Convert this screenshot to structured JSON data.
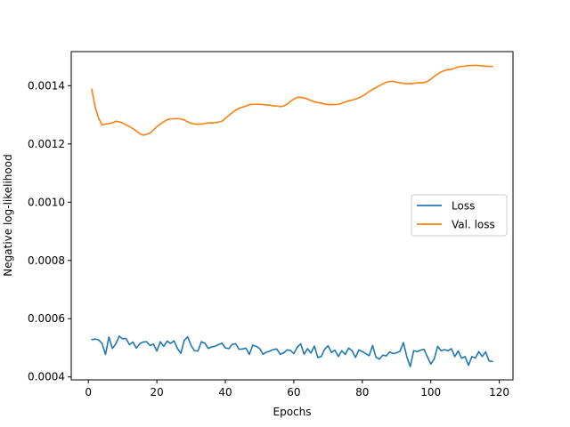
{
  "chart_data": {
    "type": "line",
    "xlabel": "Epochs",
    "ylabel": "Negative log-likelihood",
    "xlim": [
      -5,
      124
    ],
    "ylim": [
      0.00039,
      0.001517
    ],
    "xticks": [
      0,
      20,
      40,
      60,
      80,
      100,
      120
    ],
    "xtick_labels": [
      "0",
      "20",
      "40",
      "60",
      "80",
      "100",
      "120"
    ],
    "yticks": [
      0.0004,
      0.0006,
      0.0008,
      0.001,
      0.0012,
      0.0014
    ],
    "ytick_labels": [
      "0.0004",
      "0.0006",
      "0.0008",
      "0.0010",
      "0.0012",
      "0.0014"
    ],
    "grid": false,
    "legend_position": "center-right",
    "series": [
      {
        "name": "Loss",
        "color": "#1f77b4",
        "x": [
          1,
          2,
          3,
          4,
          5,
          6,
          7,
          8,
          9,
          10,
          11,
          12,
          13,
          14,
          15,
          16,
          17,
          18,
          19,
          20,
          21,
          22,
          23,
          24,
          25,
          26,
          27,
          28,
          29,
          30,
          31,
          32,
          33,
          34,
          35,
          36,
          37,
          38,
          39,
          40,
          41,
          42,
          43,
          44,
          45,
          46,
          47,
          48,
          49,
          50,
          51,
          52,
          53,
          54,
          55,
          56,
          57,
          58,
          59,
          60,
          61,
          62,
          63,
          64,
          65,
          66,
          67,
          68,
          69,
          70,
          71,
          72,
          73,
          74,
          75,
          76,
          77,
          78,
          79,
          80,
          81,
          82,
          83,
          84,
          85,
          86,
          87,
          88,
          89,
          90,
          91,
          92,
          93,
          94,
          95,
          96,
          97,
          98,
          99,
          100,
          101,
          102,
          103,
          104,
          105,
          106,
          107,
          108,
          109,
          110,
          111,
          112,
          113,
          114,
          115,
          116,
          117,
          118
        ],
        "values": [
          0.000528,
          0.00053,
          0.000527,
          0.000515,
          0.000477,
          0.000537,
          0.000498,
          0.000513,
          0.00054,
          0.000531,
          0.000532,
          0.000511,
          0.00052,
          0.000499,
          0.000514,
          0.00052,
          0.000521,
          0.000508,
          0.000513,
          0.000489,
          0.000521,
          0.000505,
          0.000523,
          0.000515,
          0.000524,
          0.000498,
          0.000481,
          0.000525,
          0.000538,
          0.000508,
          0.00049,
          0.000489,
          0.000521,
          0.000516,
          0.000498,
          0.000503,
          0.000505,
          0.000511,
          0.000516,
          0.0005,
          0.000497,
          0.000512,
          0.000514,
          0.000495,
          0.000496,
          0.000499,
          0.000477,
          0.000509,
          0.000505,
          0.000498,
          0.000478,
          0.000485,
          0.000489,
          0.000494,
          0.000496,
          0.000478,
          0.000482,
          0.000493,
          0.000491,
          0.00048,
          0.000502,
          0.000514,
          0.000478,
          0.000497,
          0.000482,
          0.000506,
          0.000467,
          0.00047,
          0.000495,
          0.000507,
          0.000484,
          0.000492,
          0.00047,
          0.00049,
          0.000477,
          0.000499,
          0.00049,
          0.000467,
          0.000493,
          0.000487,
          0.00048,
          0.000473,
          0.000508,
          0.000467,
          0.000461,
          0.000475,
          0.000472,
          0.000486,
          0.00048,
          0.000483,
          0.000488,
          0.000518,
          0.000469,
          0.000435,
          0.00049,
          0.000487,
          0.000492,
          0.000495,
          0.000469,
          0.000444,
          0.000462,
          0.000505,
          0.00049,
          0.000494,
          0.00049,
          0.000497,
          0.00047,
          0.000489,
          0.000464,
          0.00047,
          0.00044,
          0.00047,
          0.000465,
          0.000487,
          0.00047,
          0.000486,
          0.000455,
          0.000453
        ]
      },
      {
        "name": "Val. loss",
        "color": "#ff7f0e",
        "x": [
          1,
          2,
          3,
          4,
          5,
          6,
          7,
          8,
          9,
          10,
          11,
          12,
          13,
          14,
          15,
          16,
          17,
          18,
          19,
          20,
          21,
          22,
          23,
          24,
          25,
          26,
          27,
          28,
          29,
          30,
          31,
          32,
          33,
          34,
          35,
          36,
          37,
          38,
          39,
          40,
          41,
          42,
          43,
          44,
          45,
          46,
          47,
          48,
          49,
          50,
          51,
          52,
          53,
          54,
          55,
          56,
          57,
          58,
          59,
          60,
          61,
          62,
          63,
          64,
          65,
          66,
          67,
          68,
          69,
          70,
          71,
          72,
          73,
          74,
          75,
          76,
          77,
          78,
          79,
          80,
          81,
          82,
          83,
          84,
          85,
          86,
          87,
          88,
          89,
          90,
          91,
          92,
          93,
          94,
          95,
          96,
          97,
          98,
          99,
          100,
          101,
          102,
          103,
          104,
          105,
          106,
          107,
          108,
          109,
          110,
          111,
          112,
          113,
          114,
          115,
          116,
          117,
          118
        ],
        "values": [
          0.001388,
          0.001325,
          0.001288,
          0.001265,
          0.001268,
          0.00127,
          0.001272,
          0.001278,
          0.001276,
          0.001272,
          0.001265,
          0.00126,
          0.001252,
          0.001245,
          0.001235,
          0.00123,
          0.001233,
          0.001237,
          0.001248,
          0.001259,
          0.001268,
          0.001276,
          0.001283,
          0.001286,
          0.001286,
          0.001287,
          0.001286,
          0.001282,
          0.001276,
          0.001271,
          0.001268,
          0.001268,
          0.001268,
          0.00127,
          0.001272,
          0.001272,
          0.001273,
          0.001275,
          0.001278,
          0.001288,
          0.001298,
          0.001307,
          0.001316,
          0.001322,
          0.001326,
          0.00133,
          0.001335,
          0.001336,
          0.001336,
          0.001336,
          0.001335,
          0.001334,
          0.001333,
          0.001331,
          0.00133,
          0.001328,
          0.00133,
          0.001336,
          0.001346,
          0.001354,
          0.00136,
          0.00136,
          0.001358,
          0.001354,
          0.001349,
          0.001345,
          0.001342,
          0.00134,
          0.001337,
          0.001335,
          0.001335,
          0.001335,
          0.001336,
          0.00134,
          0.001344,
          0.001348,
          0.00135,
          0.001354,
          0.001358,
          0.001364,
          0.001371,
          0.00138,
          0.001387,
          0.001393,
          0.0014,
          0.001406,
          0.001412,
          0.001414,
          0.001415,
          0.001412,
          0.00141,
          0.001408,
          0.001407,
          0.001407,
          0.001408,
          0.00141,
          0.00141,
          0.00141,
          0.001415,
          0.001422,
          0.001432,
          0.00144,
          0.001447,
          0.001452,
          0.001455,
          0.001456,
          0.00146,
          0.001464,
          0.001466,
          0.001467,
          0.001469,
          0.001469,
          0.00147,
          0.001469,
          0.001468,
          0.001467,
          0.001466,
          0.001466
        ]
      }
    ]
  }
}
